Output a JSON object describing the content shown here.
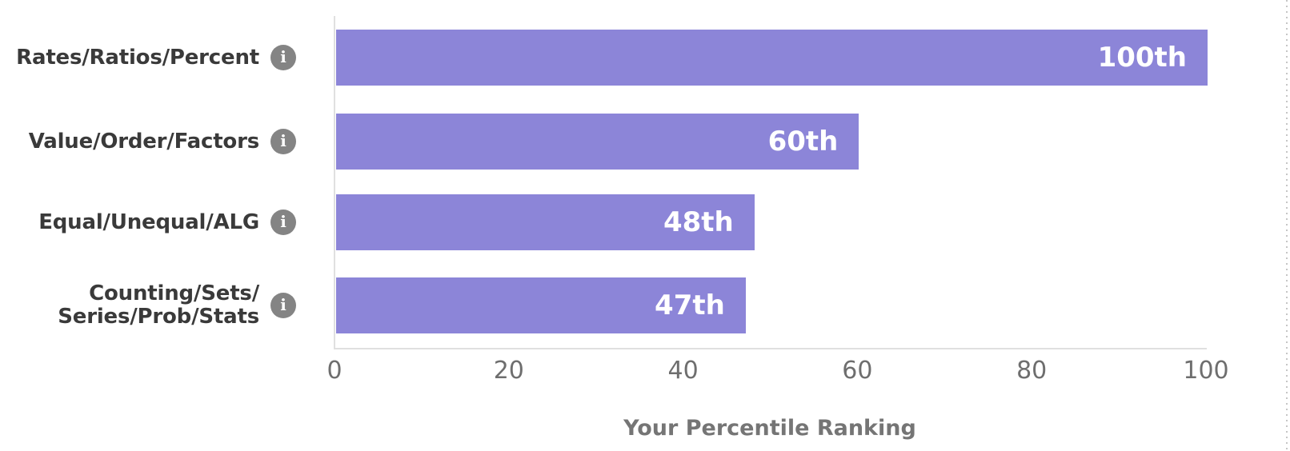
{
  "chart": {
    "rows": [
      {
        "label": "Rates/Ratios/Percent",
        "label_line2": "",
        "value_label": "100th"
      },
      {
        "label": "Value/Order/Factors",
        "label_line2": "",
        "value_label": "60th"
      },
      {
        "label": "Equal/Unequal/ALG",
        "label_line2": "",
        "value_label": "48th"
      },
      {
        "label": "Counting/Sets/",
        "label_line2": "Series/Prob/Stats",
        "value_label": "47th"
      }
    ],
    "xlabel": "Your Percentile Ranking",
    "info_icon": "info-circle-icon"
  },
  "chart_data": {
    "type": "bar",
    "orientation": "horizontal",
    "title": "",
    "categories": [
      "Rates/Ratios/Percent",
      "Value/Order/Factors",
      "Equal/Unequal/ALG",
      "Counting/Sets/Series/Prob/Stats"
    ],
    "values": [
      100,
      60,
      48,
      47
    ],
    "bar_labels": [
      "100th",
      "60th",
      "48th",
      "47th"
    ],
    "xlabel": "Your Percentile Ranking",
    "ylabel": "",
    "xlim": [
      0,
      100
    ],
    "xticks": [
      0,
      20,
      40,
      60,
      80,
      100
    ],
    "xtick_labels": [
      "0",
      "20",
      "40",
      "60",
      "80",
      "100"
    ],
    "grid": false,
    "legend_position": "none",
    "bar_color": "#8c85d8",
    "value_label_position": "inside-end"
  },
  "colors": {
    "background": "#ffffff",
    "bar_color": "#8c85d8",
    "value_text": "#ffffff",
    "label_text": "#3a3a3a",
    "icon_bg": "#848484",
    "icon_glyph": "#ffffff",
    "axis_line": "#e0e0e0",
    "tick_text": "#6e6e6e",
    "axis_title": "#757575",
    "dotted_border": "#c6c6c6"
  }
}
